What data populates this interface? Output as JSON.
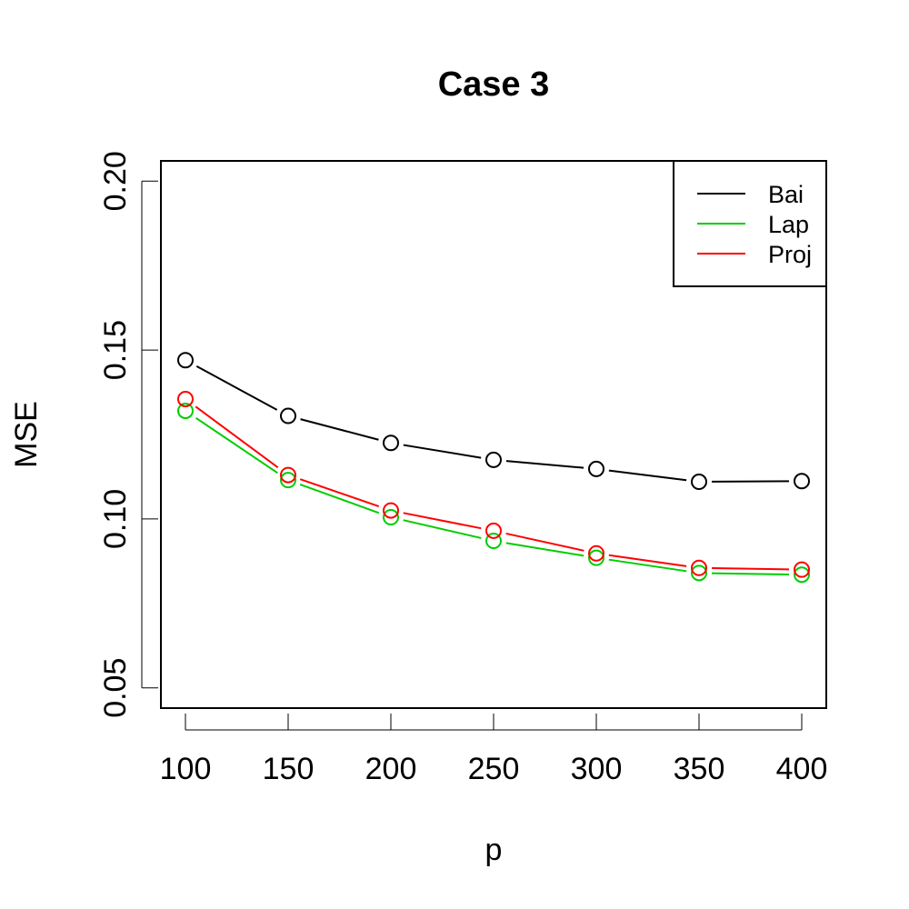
{
  "chart_data": {
    "type": "line",
    "title": "Case 3",
    "xlabel": "p",
    "ylabel": "MSE",
    "x": [
      100,
      150,
      200,
      250,
      300,
      350,
      400
    ],
    "xticks": [
      "100",
      "150",
      "200",
      "250",
      "300",
      "350",
      "400"
    ],
    "yticks": [
      "0.05",
      "0.10",
      "0.15",
      "0.20"
    ],
    "ylim": [
      0.044,
      0.206
    ],
    "grid": false,
    "legend_position": "top-right",
    "series": [
      {
        "name": "Bai",
        "color": "#000000",
        "values": [
          0.147,
          0.1305,
          0.1225,
          0.1175,
          0.1148,
          0.111,
          0.1112
        ]
      },
      {
        "name": "Lap",
        "color": "#00cd00",
        "values": [
          0.132,
          0.1115,
          0.1005,
          0.0935,
          0.0885,
          0.084,
          0.0835
        ]
      },
      {
        "name": "Proj",
        "color": "#ff0000",
        "values": [
          0.1355,
          0.113,
          0.1025,
          0.0965,
          0.0898,
          0.0855,
          0.085
        ]
      }
    ]
  }
}
